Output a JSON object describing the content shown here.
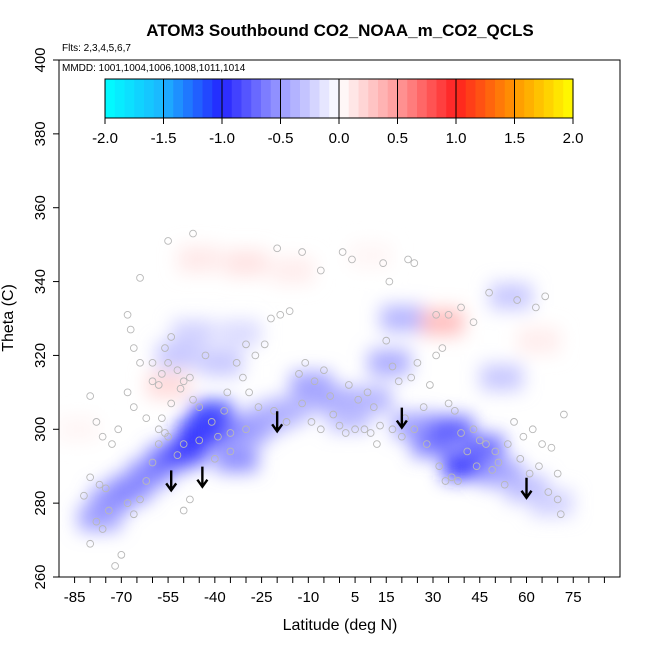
{
  "chart_data": {
    "type": "heatmap",
    "title": "ATOM3 Southbound CO2_NOAA_m_CO2_QCLS",
    "flights_note": "Flts: 2,3,4,5,6,7",
    "dates_note": "MMDD: 1001,1004,1006,1008,1011,1014",
    "xlabel": "Latitude (deg N)",
    "ylabel": "Theta (C)",
    "xlim": [
      -90,
      90
    ],
    "ylim": [
      260,
      400
    ],
    "x_ticks": [
      -85,
      -70,
      -55,
      -40,
      -25,
      -10,
      5,
      15,
      30,
      45,
      60,
      75
    ],
    "x_minor_ticks": [
      -85,
      -80,
      -75,
      -70,
      -65,
      -60,
      -55,
      -50,
      -45,
      -40,
      -35,
      -30,
      -25,
      -20,
      -15,
      -10,
      -5,
      0,
      5,
      10,
      15,
      20,
      25,
      30,
      35,
      40,
      45,
      50,
      55,
      60,
      65,
      70,
      75,
      80,
      85
    ],
    "y_ticks": [
      260,
      280,
      300,
      320,
      340,
      360,
      380,
      400
    ],
    "colorbar": {
      "ticks": [
        -2.0,
        -1.5,
        -1.0,
        -0.5,
        0.0,
        0.5,
        1.0,
        1.5,
        2.0
      ],
      "tick_labels": [
        "-2.0",
        "-1.5",
        "-1.0",
        "-0.5",
        "0.0",
        "0.5",
        "1.0",
        "1.5",
        "2.0"
      ],
      "stops": [
        {
          "v": -2.0,
          "c": "#00ffff"
        },
        {
          "v": -1.5,
          "c": "#1cb4ff"
        },
        {
          "v": -1.0,
          "c": "#2424ff"
        },
        {
          "v": -0.5,
          "c": "#9a9aff"
        },
        {
          "v": 0.0,
          "c": "#ffffff"
        },
        {
          "v": 0.5,
          "c": "#ff9a9a"
        },
        {
          "v": 1.0,
          "c": "#ff2020"
        },
        {
          "v": 1.5,
          "c": "#ff9600"
        },
        {
          "v": 2.0,
          "c": "#ffff00"
        }
      ]
    },
    "cells": [
      {
        "lat": -77,
        "theta": 276,
        "value": -0.5
      },
      {
        "lat": -73,
        "theta": 281,
        "value": -0.55
      },
      {
        "lat": -67,
        "theta": 284,
        "value": -0.6
      },
      {
        "lat": -61,
        "theta": 288,
        "value": -0.6
      },
      {
        "lat": -55,
        "theta": 292,
        "value": -0.7
      },
      {
        "lat": -49,
        "theta": 294,
        "value": -0.9
      },
      {
        "lat": -45,
        "theta": 299,
        "value": -1.0
      },
      {
        "lat": -41,
        "theta": 304,
        "value": -1.05
      },
      {
        "lat": -37,
        "theta": 300,
        "value": -0.85
      },
      {
        "lat": -33,
        "theta": 292,
        "value": -0.6
      },
      {
        "lat": -29,
        "theta": 300,
        "value": -0.55
      },
      {
        "lat": -23,
        "theta": 303,
        "value": -0.45
      },
      {
        "lat": -17,
        "theta": 305,
        "value": -0.4
      },
      {
        "lat": -9,
        "theta": 312,
        "value": -0.5
      },
      {
        "lat": -3,
        "theta": 308,
        "value": -0.45
      },
      {
        "lat": 3,
        "theta": 303,
        "value": -0.35
      },
      {
        "lat": 10,
        "theta": 308,
        "value": -0.4
      },
      {
        "lat": 16,
        "theta": 318,
        "value": -0.45
      },
      {
        "lat": 20,
        "theta": 330,
        "value": -0.4
      },
      {
        "lat": 24,
        "theta": 301,
        "value": -0.5
      },
      {
        "lat": 30,
        "theta": 296,
        "value": -0.65
      },
      {
        "lat": 36,
        "theta": 300,
        "value": -0.8
      },
      {
        "lat": 40,
        "theta": 290,
        "value": -1.0
      },
      {
        "lat": 46,
        "theta": 295,
        "value": -0.75
      },
      {
        "lat": 52,
        "theta": 288,
        "value": -0.5
      },
      {
        "lat": 60,
        "theta": 284,
        "value": -0.35
      },
      {
        "lat": 68,
        "theta": 280,
        "value": -0.25
      },
      {
        "lat": 52,
        "theta": 314,
        "value": -0.3
      },
      {
        "lat": 55,
        "theta": 336,
        "value": -0.3
      },
      {
        "lat": -52,
        "theta": 320,
        "value": -0.3
      },
      {
        "lat": -47,
        "theta": 326,
        "value": -0.25
      },
      {
        "lat": -38,
        "theta": 318,
        "value": -0.3
      },
      {
        "lat": -32,
        "theta": 326,
        "value": -0.2
      },
      {
        "lat": -30,
        "theta": 345,
        "value": 0.15
      },
      {
        "lat": -15,
        "theta": 343,
        "value": 0.1
      },
      {
        "lat": -45,
        "theta": 346,
        "value": 0.12
      },
      {
        "lat": -55,
        "theta": 312,
        "value": 0.2
      },
      {
        "lat": 33,
        "theta": 329,
        "value": 0.35
      },
      {
        "lat": 10,
        "theta": 347,
        "value": 0.05
      },
      {
        "lat": 64,
        "theta": 324,
        "value": 0.1
      },
      {
        "lat": -84,
        "theta": 300,
        "value": 0.05
      }
    ],
    "arrows": [
      {
        "lat": -54,
        "theta": 284
      },
      {
        "lat": -44,
        "theta": 285
      },
      {
        "lat": -20,
        "theta": 300
      },
      {
        "lat": 20,
        "theta": 301
      },
      {
        "lat": 60,
        "theta": 282
      }
    ],
    "points": [
      [
        -80,
        309
      ],
      [
        -78,
        302
      ],
      [
        -76,
        298
      ],
      [
        -80,
        287
      ],
      [
        -77,
        285
      ],
      [
        -75,
        284
      ],
      [
        -73,
        296
      ],
      [
        -71,
        300
      ],
      [
        -68,
        310
      ],
      [
        -66,
        306
      ],
      [
        -64,
        318
      ],
      [
        -62,
        303
      ],
      [
        -60,
        313
      ],
      [
        -58,
        312
      ],
      [
        -57,
        315
      ],
      [
        -56,
        322
      ],
      [
        -55,
        318
      ],
      [
        -54,
        325
      ],
      [
        -52,
        316
      ],
      [
        -51,
        311
      ],
      [
        -50,
        313
      ],
      [
        -48,
        314
      ],
      [
        -47,
        308
      ],
      [
        -45,
        306
      ],
      [
        -43,
        320
      ],
      [
        -41,
        302
      ],
      [
        -39,
        298
      ],
      [
        -37,
        305
      ],
      [
        -35,
        294
      ],
      [
        -33,
        318
      ],
      [
        -31,
        314
      ],
      [
        -29,
        310
      ],
      [
        -27,
        320
      ],
      [
        -24,
        323
      ],
      [
        -22,
        330
      ],
      [
        -19,
        331
      ],
      [
        -16,
        332
      ],
      [
        -13,
        315
      ],
      [
        -11,
        318
      ],
      [
        -8,
        313
      ],
      [
        -5,
        316
      ],
      [
        -3,
        309
      ],
      [
        0,
        301
      ],
      [
        3,
        312
      ],
      [
        6,
        308
      ],
      [
        9,
        310
      ],
      [
        11,
        306
      ],
      [
        13,
        301
      ],
      [
        15,
        324
      ],
      [
        17,
        317
      ],
      [
        19,
        313
      ],
      [
        21,
        303
      ],
      [
        23,
        314
      ],
      [
        25,
        318
      ],
      [
        27,
        306
      ],
      [
        29,
        312
      ],
      [
        31,
        320
      ],
      [
        33,
        322
      ],
      [
        35,
        307
      ],
      [
        37,
        305
      ],
      [
        39,
        299
      ],
      [
        41,
        294
      ],
      [
        43,
        300
      ],
      [
        45,
        297
      ],
      [
        47,
        296
      ],
      [
        49,
        289
      ],
      [
        51,
        291
      ],
      [
        53,
        285
      ],
      [
        56,
        302
      ],
      [
        59,
        298
      ],
      [
        62,
        300
      ],
      [
        65,
        296
      ],
      [
        68,
        295
      ],
      [
        70,
        288
      ],
      [
        71,
        277
      ],
      [
        72,
        304
      ],
      [
        -82,
        282
      ],
      [
        -80,
        269
      ],
      [
        -78,
        275
      ],
      [
        -76,
        273
      ],
      [
        -74,
        278
      ],
      [
        -72,
        263
      ],
      [
        -70,
        266
      ],
      [
        -68,
        280
      ],
      [
        -66,
        277
      ],
      [
        -64,
        281
      ],
      [
        -62,
        286
      ],
      [
        -60,
        291
      ],
      [
        -58,
        296
      ],
      [
        -56,
        299
      ],
      [
        -54,
        307
      ],
      [
        -52,
        293
      ],
      [
        -50,
        278
      ],
      [
        -48,
        281
      ],
      [
        -64,
        341
      ],
      [
        -55,
        351
      ],
      [
        -47,
        353
      ],
      [
        -36,
        310
      ],
      [
        -30,
        323
      ],
      [
        -20,
        349
      ],
      [
        -12,
        348
      ],
      [
        -6,
        343
      ],
      [
        1,
        348
      ],
      [
        4,
        346
      ],
      [
        14,
        345
      ],
      [
        16,
        340
      ],
      [
        22,
        346
      ],
      [
        24,
        345
      ],
      [
        31,
        331
      ],
      [
        35,
        331
      ],
      [
        39,
        333
      ],
      [
        43,
        329
      ],
      [
        48,
        337
      ],
      [
        57,
        335
      ],
      [
        63,
        333
      ],
      [
        66,
        336
      ],
      [
        -68,
        331
      ],
      [
        -67,
        327
      ],
      [
        -66,
        322
      ],
      [
        -60,
        318
      ],
      [
        -58,
        300
      ],
      [
        -57,
        303
      ],
      [
        -55,
        298
      ],
      [
        -50,
        296
      ],
      [
        -45,
        297
      ],
      [
        -40,
        292
      ],
      [
        -35,
        299
      ],
      [
        -30,
        300
      ],
      [
        -26,
        306
      ],
      [
        -21,
        305
      ],
      [
        -17,
        302
      ],
      [
        -12,
        307
      ],
      [
        -9,
        302
      ],
      [
        -6,
        300
      ],
      [
        -2,
        304
      ],
      [
        2,
        299
      ],
      [
        5,
        300
      ],
      [
        8,
        300
      ],
      [
        10,
        299
      ],
      [
        12,
        296
      ],
      [
        17,
        300
      ],
      [
        20,
        298
      ],
      [
        24,
        300
      ],
      [
        28,
        296
      ],
      [
        32,
        290
      ],
      [
        34,
        286
      ],
      [
        36,
        287
      ],
      [
        38,
        286
      ],
      [
        44,
        290
      ],
      [
        50,
        294
      ],
      [
        54,
        296
      ],
      [
        58,
        292
      ],
      [
        61,
        288
      ],
      [
        64,
        290
      ],
      [
        67,
        283
      ],
      [
        70,
        281
      ]
    ]
  }
}
